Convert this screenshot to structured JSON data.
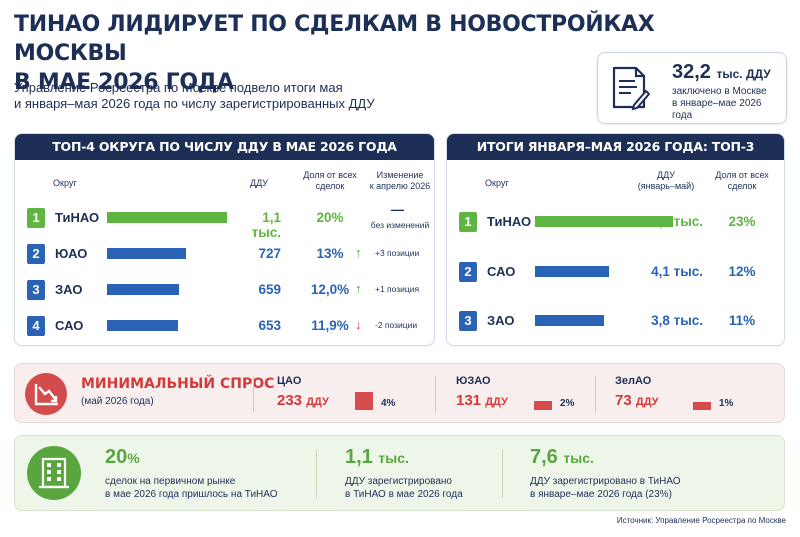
{
  "title_line1": "ТИНАО ЛИДИРУЕТ ПО СДЕЛКАМ В НОВОСТРОЙКАХ МОСКВЫ",
  "title_line2": "В МАЕ 2026 ГОДА",
  "lead_line1": "Управление Росреестра по Москве подвело итоги мая",
  "lead_line2": "и января–мая 2026 года по числу зарегистрированных ДДУ",
  "kpi": {
    "value": "32,2",
    "unit": "тыс. ДДУ",
    "sub_line1": "заключено в Москве",
    "sub_line2": "в январе–мае 2026 года",
    "icon": "document-pen-icon"
  },
  "colors": {
    "navy": "#1d2f57",
    "green": "#5fb541",
    "blue": "#2a63b6",
    "red": "#d03b3b"
  },
  "chart_data": [
    {
      "type": "bar",
      "title": "ТОП-4 ОКРУГА ПО ЧИСЛУ ДДУ В МАЕ 2026 ГОДА",
      "headers": {
        "district": "Округ",
        "ddu": "ДДУ",
        "share_1": "Доля от всех",
        "share_2": "сделок",
        "change_1": "Изменение",
        "change_2": "к апрелю 2026"
      },
      "categories": [
        "ТиНАО",
        "ЮАО",
        "ЗАО",
        "САО"
      ],
      "values": [
        1100,
        727,
        659,
        653
      ],
      "ranks": [
        "1",
        "2",
        "3",
        "4"
      ],
      "value_labels": [
        "1,1 тыс.",
        "727",
        "659",
        "653"
      ],
      "shares": [
        "20%",
        "13%",
        "12,0%",
        "11,9%"
      ],
      "changes": [
        {
          "dir": "none",
          "symbol": "—",
          "text": "без изменений"
        },
        {
          "dir": "up",
          "symbol": "↑",
          "text": "+3 позиции"
        },
        {
          "dir": "up",
          "symbol": "↑",
          "text": "+1 позиция"
        },
        {
          "dir": "down",
          "symbol": "↓",
          "text": "-2 позиции"
        }
      ]
    },
    {
      "type": "bar",
      "title": "ИТОГИ ЯНВАРЯ–МАЯ 2026 ГОДА: ТОП-3 ОКРУГА",
      "headers": {
        "district": "Округ",
        "ddu_1": "ДДУ",
        "ddu_2": "(январь–май)",
        "share_1": "Доля от всех",
        "share_2": "сделок"
      },
      "categories": [
        "ТиНАО",
        "САО",
        "ЗАО"
      ],
      "values": [
        7600,
        4100,
        3800
      ],
      "ranks": [
        "1",
        "2",
        "3"
      ],
      "value_labels": [
        "7,6 тыс.",
        "4,1 тыс.",
        "3,8 тыс."
      ],
      "shares": [
        "23%",
        "12%",
        "11%"
      ]
    }
  ],
  "min_demand": {
    "title": "МИНИМАЛЬНЫЙ СПРОС",
    "subtitle": "(май 2026 года)",
    "icon": "chart-down-icon",
    "items": [
      {
        "name": "ЦАО",
        "value": "233",
        "unit": "ДДУ",
        "share": "4%",
        "pct": 4
      },
      {
        "name": "ЮЗАО",
        "value": "131",
        "unit": "ДДУ",
        "share": "2%",
        "pct": 2
      },
      {
        "name": "ЗелАО",
        "value": "73",
        "unit": "ДДУ",
        "share": "1%",
        "pct": 1
      }
    ]
  },
  "facts": {
    "icon": "building-icon",
    "items": [
      {
        "num": "20",
        "unit": "%",
        "line1": "сделок на первичном рынке",
        "line2": "в мае 2026 года пришлось на ТиНАО"
      },
      {
        "num": "1,1",
        "unit": "тыс.",
        "line1": "ДДУ зарегистрировано",
        "line2": "в ТиНАО в мае 2026 года"
      },
      {
        "num": "7,6",
        "unit": "тыс.",
        "line1": "ДДУ зарегистрировано в ТиНАО",
        "line2": "в январе–мае 2026 года (23%)"
      }
    ]
  },
  "source": "Источник: Управление Росреестра по Москве"
}
